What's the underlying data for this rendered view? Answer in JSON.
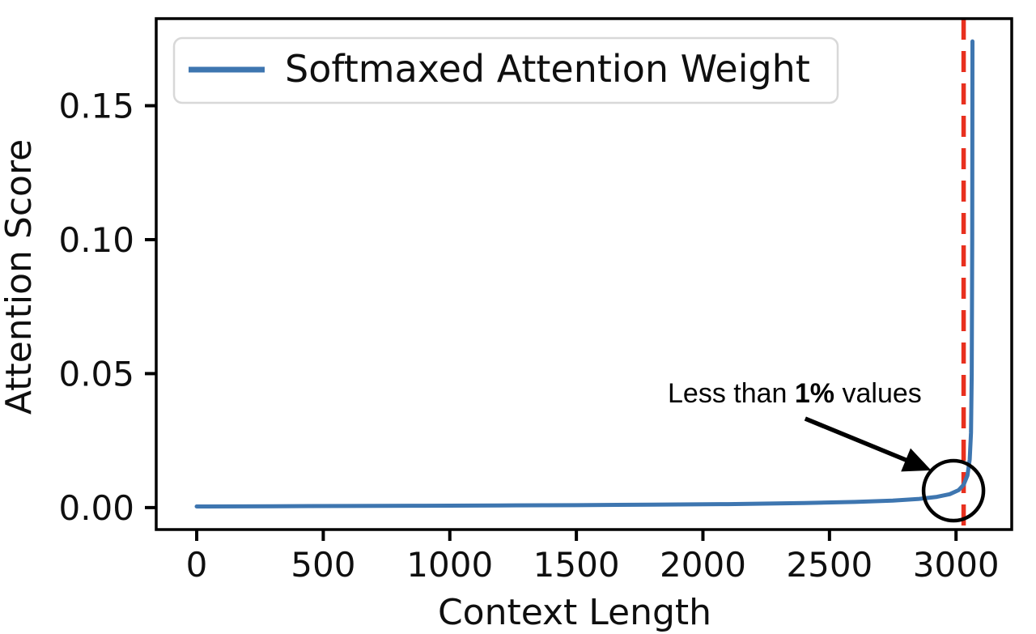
{
  "figure": {
    "background": "#ffffff",
    "text_color": "#0f0f0f"
  },
  "chart_data": {
    "type": "line",
    "xlabel": "Context Length",
    "ylabel": "Attention Score",
    "xlim": [
      -160,
      3220
    ],
    "ylim": [
      -0.0082,
      0.1825
    ],
    "grid": false,
    "xticks": {
      "values": [
        0,
        500,
        1000,
        1500,
        2000,
        2500,
        3000
      ],
      "labels": [
        "0",
        "500",
        "1000",
        "1500",
        "2000",
        "2500",
        "3000"
      ]
    },
    "yticks": {
      "values": [
        0.0,
        0.05,
        0.1,
        0.15
      ],
      "labels": [
        "0.00",
        "0.05",
        "0.10",
        "0.15"
      ]
    },
    "legend": {
      "position": "upper left",
      "entries": [
        "Softmaxed Attention Weight"
      ]
    },
    "series": [
      {
        "name": "Softmaxed Attention Weight",
        "color": "#3e76b0",
        "line_width": 5,
        "x": [
          0,
          300,
          600,
          900,
          1200,
          1500,
          1800,
          2100,
          2400,
          2600,
          2750,
          2850,
          2925,
          2975,
          3010,
          3030,
          3045,
          3054,
          3059,
          3062,
          3064,
          3065
        ],
        "y": [
          0.0004,
          0.0005,
          0.0006,
          0.0007,
          0.0008,
          0.0009,
          0.0011,
          0.0013,
          0.0017,
          0.0021,
          0.0026,
          0.0032,
          0.004,
          0.005,
          0.0065,
          0.0085,
          0.012,
          0.018,
          0.028,
          0.05,
          0.1,
          0.174
        ]
      }
    ],
    "vline": {
      "x": 3030,
      "color": "#e8301f",
      "style": "dashed",
      "width": 5.5
    },
    "annotations": {
      "callout": {
        "text_prefix": "Less than ",
        "text_bold": "1%",
        "text_suffix": " values",
        "color": "#000000",
        "text_xy": [
          1860,
          0.0393
        ],
        "arrow_tail_xy": [
          2404,
          0.0332
        ],
        "arrow_tip_xy": [
          2902,
          0.0139
        ],
        "circle_center_xy": [
          2990,
          0.0063
        ],
        "circle_radius_px": 37
      }
    }
  }
}
